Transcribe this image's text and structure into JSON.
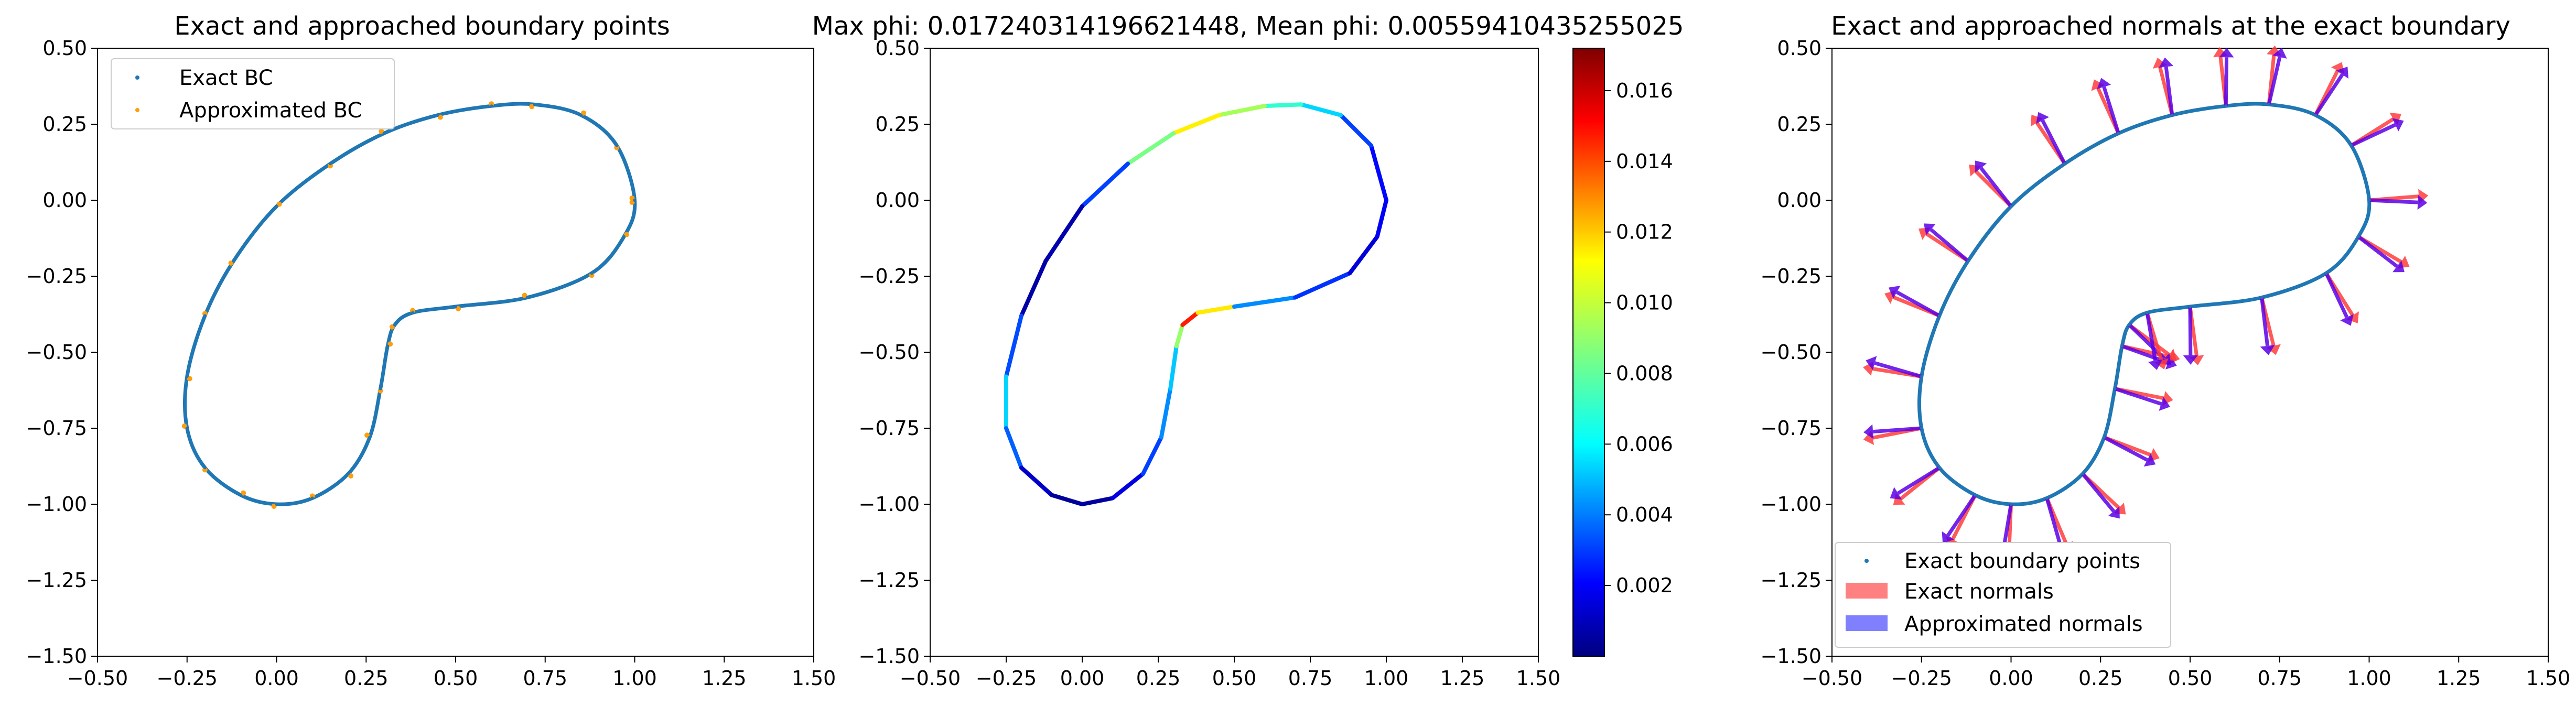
{
  "chart_data": [
    {
      "type": "scatter",
      "title": "Exact and approached boundary points",
      "xlim": [
        -0.5,
        1.5
      ],
      "ylim": [
        -1.5,
        0.5
      ],
      "xticks": [
        "−0.50",
        "−0.25",
        "0.00",
        "0.25",
        "0.50",
        "0.75",
        "1.00",
        "1.25",
        "1.50"
      ],
      "yticks": [
        "0.50",
        "0.25",
        "0.00",
        "−0.25",
        "−0.50",
        "−0.75",
        "−1.00",
        "−1.25",
        "−1.50"
      ],
      "legend_position": "upper-left",
      "series": [
        {
          "name": "Exact BC",
          "color": "#1f77b4"
        },
        {
          "name": "Approximated BC",
          "color": "#ff9e0c"
        }
      ],
      "x": [
        1.0,
        0.95,
        0.85,
        0.72,
        0.6,
        0.45,
        0.3,
        0.15,
        0.0,
        -0.12,
        -0.2,
        -0.25,
        -0.25,
        -0.2,
        -0.1,
        0.0,
        0.1,
        0.2,
        0.26,
        0.29,
        0.31,
        0.33,
        0.38,
        0.5,
        0.7,
        0.88,
        0.97,
        1.0
      ],
      "y": [
        0.0,
        0.18,
        0.28,
        0.315,
        0.31,
        0.28,
        0.22,
        0.12,
        -0.02,
        -0.2,
        -0.38,
        -0.58,
        -0.75,
        -0.88,
        -0.97,
        -1.0,
        -0.98,
        -0.9,
        -0.78,
        -0.62,
        -0.48,
        -0.41,
        -0.37,
        -0.35,
        -0.32,
        -0.24,
        -0.12,
        0.0
      ]
    },
    {
      "type": "line",
      "title": "Max phi: 0.017240314196621448, Mean phi: 0.00559410435255025",
      "xlim": [
        -0.5,
        1.5
      ],
      "ylim": [
        -1.5,
        0.5
      ],
      "xticks": [
        "−0.50",
        "−0.25",
        "0.00",
        "0.25",
        "0.50",
        "0.75",
        "1.00",
        "1.25",
        "1.50"
      ],
      "yticks": [
        "0.50",
        "0.25",
        "0.00",
        "−0.25",
        "−0.50",
        "−0.75",
        "−1.00",
        "−1.25",
        "−1.50"
      ],
      "colorbar": {
        "colormap": "jet",
        "range": [
          0.0,
          0.0172
        ],
        "ticks": [
          "0.016",
          "0.014",
          "0.012",
          "0.010",
          "0.008",
          "0.006",
          "0.004",
          "0.002"
        ]
      },
      "x": [
        1.0,
        0.95,
        0.85,
        0.72,
        0.6,
        0.45,
        0.3,
        0.15,
        0.0,
        -0.12,
        -0.2,
        -0.25,
        -0.25,
        -0.2,
        -0.1,
        0.0,
        0.1,
        0.2,
        0.26,
        0.29,
        0.31,
        0.33,
        0.38,
        0.5,
        0.7,
        0.88,
        0.97,
        1.0
      ],
      "y": [
        0.0,
        0.18,
        0.28,
        0.315,
        0.31,
        0.28,
        0.22,
        0.12,
        -0.02,
        -0.2,
        -0.38,
        -0.58,
        -0.75,
        -0.88,
        -0.97,
        -1.0,
        -0.98,
        -0.9,
        -0.78,
        -0.62,
        -0.48,
        -0.41,
        -0.37,
        -0.35,
        -0.32,
        -0.24,
        -0.12,
        0.0
      ],
      "phi": [
        0.003,
        0.0015,
        0.005,
        0.0065,
        0.008,
        0.0105,
        0.0115,
        0.0055,
        0.001,
        0.0005,
        0.0008,
        0.006,
        0.0055,
        0.002,
        0.0005,
        0.0003,
        0.0008,
        0.0025,
        0.004,
        0.005,
        0.006,
        0.012,
        0.0172,
        0.005,
        0.004,
        0.002,
        0.001,
        0.003
      ]
    },
    {
      "type": "scatter",
      "title": "Exact and approached normals at the exact boundary",
      "xlim": [
        -0.5,
        1.5
      ],
      "ylim": [
        -1.5,
        0.5
      ],
      "xticks": [
        "−0.50",
        "−0.25",
        "0.00",
        "0.25",
        "0.50",
        "0.75",
        "1.00",
        "1.25",
        "1.50"
      ],
      "yticks": [
        "0.50",
        "0.25",
        "0.00",
        "−0.25",
        "−0.50",
        "−0.75",
        "−1.00",
        "−1.25",
        "−1.50"
      ],
      "legend_position": "lower-left",
      "series": [
        {
          "name": "Exact boundary points",
          "color": "#1f77b4"
        },
        {
          "name": "Exact normals",
          "color": "#ff8080"
        },
        {
          "name": "Approximated normals",
          "color": "#8080ff"
        }
      ],
      "x": [
        1.0,
        0.95,
        0.85,
        0.72,
        0.6,
        0.45,
        0.3,
        0.15,
        0.0,
        -0.12,
        -0.2,
        -0.25,
        -0.25,
        -0.2,
        -0.1,
        0.0,
        0.1,
        0.2,
        0.26,
        0.29,
        0.31,
        0.33,
        0.38,
        0.5,
        0.7,
        0.88,
        0.97,
        1.0
      ],
      "y": [
        0.0,
        0.18,
        0.28,
        0.315,
        0.31,
        0.28,
        0.22,
        0.12,
        -0.02,
        -0.2,
        -0.38,
        -0.58,
        -0.75,
        -0.88,
        -0.97,
        -1.0,
        -0.98,
        -0.9,
        -0.78,
        -0.62,
        -0.48,
        -0.41,
        -0.37,
        -0.35,
        -0.32,
        -0.24,
        -0.12,
        0.0
      ]
    }
  ]
}
